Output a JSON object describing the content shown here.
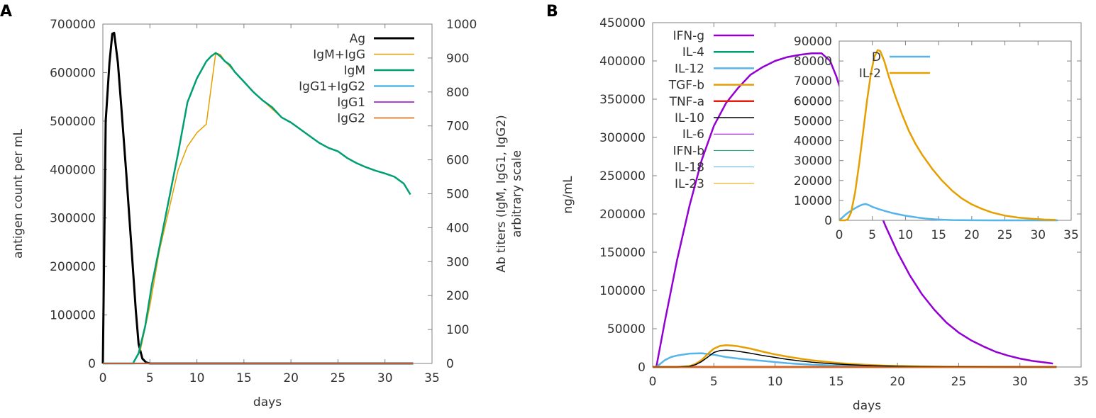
{
  "chart_data": [
    {
      "panel_label": "A",
      "type": "line",
      "xlabel": "days",
      "ylabel": "antigen count per mL",
      "y2label": [
        "Ab titers (IgM, IgG1, IgG2)",
        "arbitrary scale"
      ],
      "xlim": [
        0,
        35
      ],
      "ylim": [
        0,
        700000
      ],
      "y2lim": [
        0,
        1000
      ],
      "xticks": [
        0,
        5,
        10,
        15,
        20,
        25,
        30,
        35
      ],
      "yticks": [
        0,
        100000,
        200000,
        300000,
        400000,
        500000,
        600000,
        700000
      ],
      "y2ticks": [
        0,
        100,
        200,
        300,
        400,
        500,
        600,
        700,
        800,
        900,
        1000
      ],
      "legend_position": "top-right",
      "series": [
        {
          "name": "Ag",
          "color": "#000000",
          "width": 3,
          "axis": "y",
          "x": [
            0,
            0.3,
            0.7,
            1.0,
            1.2,
            1.6,
            2.0,
            2.5,
            3.0,
            3.5,
            3.8,
            4.2,
            4.6,
            5,
            33
          ],
          "y": [
            0,
            500000,
            620000,
            680000,
            682000,
            620000,
            520000,
            390000,
            250000,
            110000,
            40000,
            10000,
            2000,
            0,
            0
          ]
        },
        {
          "name": "IgM+IgG",
          "color": "#e69f00",
          "width": 1.5,
          "axis": "y2",
          "x": [
            0,
            3.2,
            4,
            5,
            6,
            7,
            8,
            9,
            10,
            11,
            12,
            12.5,
            13,
            14,
            15,
            16,
            17,
            18,
            19,
            20,
            21,
            22,
            23,
            24,
            25,
            26,
            27,
            28,
            29,
            30,
            31,
            32,
            32.7
          ],
          "y": [
            0,
            0,
            40,
            170,
            330,
            450,
            570,
            640,
            680,
            705,
            915,
            910,
            890,
            860,
            830,
            800,
            775,
            750,
            725,
            710,
            690,
            670,
            650,
            635,
            625,
            605,
            590,
            578,
            568,
            560,
            550,
            530,
            498
          ]
        },
        {
          "name": "IgM",
          "color": "#009e73",
          "width": 2.5,
          "axis": "y2",
          "x": [
            0,
            3.2,
            3.8,
            4.5,
            5.2,
            6,
            7,
            8,
            9,
            10,
            11,
            11.5,
            12,
            12.5,
            13,
            13.5,
            14,
            15,
            16,
            17,
            18,
            19,
            20,
            21,
            22,
            23,
            24,
            25,
            26,
            27,
            28,
            29,
            30,
            31,
            32,
            32.7
          ],
          "y": [
            0,
            0,
            30,
            110,
            230,
            340,
            480,
            620,
            770,
            840,
            890,
            905,
            915,
            905,
            890,
            880,
            860,
            830,
            800,
            775,
            755,
            725,
            710,
            690,
            670,
            650,
            635,
            625,
            605,
            590,
            578,
            568,
            560,
            550,
            530,
            498
          ]
        },
        {
          "name": "IgG1+IgG2",
          "color": "#56b4e9",
          "width": 2.5,
          "axis": "y2",
          "x": [
            0,
            33
          ],
          "y": [
            0,
            0
          ]
        },
        {
          "name": "IgG1",
          "color": "#9400d3",
          "width": 1.5,
          "axis": "y2",
          "x": [
            0,
            33
          ],
          "y": [
            0,
            0
          ]
        },
        {
          "name": "IgG2",
          "color": "#d55e00",
          "width": 1.5,
          "axis": "y2",
          "x": [
            0,
            33
          ],
          "y": [
            0,
            0
          ]
        }
      ]
    },
    {
      "panel_label": "B",
      "type": "line",
      "xlabel": "days",
      "ylabel": "ng/mL",
      "xlim": [
        0,
        35
      ],
      "ylim": [
        0,
        450000
      ],
      "xticks": [
        0,
        5,
        10,
        15,
        20,
        25,
        30,
        35
      ],
      "yticks": [
        0,
        50000,
        100000,
        150000,
        200000,
        250000,
        300000,
        350000,
        400000,
        450000
      ],
      "legend_position": "top-left",
      "series": [
        {
          "name": "IFN-g",
          "color": "#9400d3",
          "width": 2.5,
          "x": [
            0,
            0.3,
            1,
            2,
            3,
            4,
            5,
            6,
            7,
            8,
            9,
            10,
            11,
            12,
            13,
            13.8,
            14.5,
            15,
            16,
            17,
            18,
            19,
            20,
            21,
            22,
            23,
            24,
            25,
            26,
            27,
            28,
            29,
            30,
            31,
            32,
            32.7
          ],
          "y": [
            0,
            0,
            60000,
            140000,
            210000,
            270000,
            315000,
            345000,
            365000,
            382000,
            392000,
            400000,
            405000,
            408000,
            410000,
            410000,
            400000,
            380000,
            330000,
            275000,
            225000,
            185000,
            150000,
            120000,
            95000,
            75000,
            58000,
            45000,
            35000,
            27000,
            20000,
            15000,
            11000,
            8000,
            6000,
            4500
          ]
        },
        {
          "name": "IL-4",
          "color": "#009e73",
          "width": 2.5,
          "x": [
            0,
            33
          ],
          "y": [
            0,
            0
          ]
        },
        {
          "name": "IL-12",
          "color": "#56b4e9",
          "width": 2.5,
          "x": [
            0,
            0.3,
            1,
            1.5,
            2,
            3,
            4,
            5,
            6,
            7,
            8,
            9,
            10,
            11,
            12,
            13,
            14,
            15,
            16,
            17,
            18,
            19,
            20,
            22,
            25,
            33
          ],
          "y": [
            0,
            0,
            9000,
            13000,
            15000,
            17500,
            18000,
            16000,
            13000,
            11000,
            9500,
            8000,
            6500,
            5000,
            4000,
            3000,
            2400,
            1900,
            1500,
            1100,
            800,
            600,
            400,
            200,
            50,
            0
          ]
        },
        {
          "name": "TGF-b",
          "color": "#e69f00",
          "width": 2.5,
          "x": [
            0,
            2,
            3,
            3.5,
            4,
            4.5,
            5,
            5.5,
            6,
            6.5,
            7,
            8,
            9,
            10,
            11,
            12,
            13,
            14,
            15,
            16,
            17,
            18,
            19,
            20,
            21,
            22,
            24,
            26,
            28,
            30,
            33
          ],
          "y": [
            0,
            0,
            1000,
            4000,
            9000,
            17000,
            24000,
            27500,
            28500,
            28000,
            27000,
            24000,
            20000,
            16500,
            13500,
            11000,
            8800,
            7000,
            5500,
            4200,
            3200,
            2400,
            1800,
            1300,
            950,
            700,
            400,
            220,
            120,
            60,
            0
          ]
        },
        {
          "name": "TNF-a",
          "color": "#e51e10",
          "width": 2.5,
          "x": [
            0,
            33
          ],
          "y": [
            0,
            0
          ]
        },
        {
          "name": "IL-10",
          "color": "#000000",
          "width": 1.5,
          "x": [
            0,
            2,
            3,
            3.5,
            4,
            4.5,
            5,
            5.5,
            6,
            6.5,
            7,
            8,
            9,
            10,
            11,
            12,
            13,
            14,
            15,
            16,
            17,
            18,
            19,
            20,
            21,
            22,
            24,
            26,
            28,
            30,
            33
          ],
          "y": [
            0,
            0,
            800,
            3000,
            7000,
            13000,
            19000,
            21500,
            22000,
            21500,
            20500,
            18000,
            15000,
            12500,
            10000,
            8000,
            6300,
            5000,
            3900,
            3000,
            2300,
            1700,
            1300,
            950,
            700,
            500,
            280,
            150,
            80,
            40,
            0
          ]
        },
        {
          "name": "IL-6",
          "color": "#9400d3",
          "width": 1,
          "x": [
            0,
            33
          ],
          "y": [
            0,
            0
          ]
        },
        {
          "name": "IFN-b",
          "color": "#009e73",
          "width": 1,
          "x": [
            0,
            33
          ],
          "y": [
            0,
            0
          ]
        },
        {
          "name": "IL-18",
          "color": "#56b4e9",
          "width": 1,
          "x": [
            0,
            33
          ],
          "y": [
            0,
            0
          ]
        },
        {
          "name": "IL-23",
          "color": "#e69f00",
          "width": 1,
          "x": [
            0,
            33
          ],
          "y": [
            0,
            0
          ]
        }
      ]
    },
    {
      "panel_label": "",
      "inset_of": "B",
      "type": "line",
      "xlabel": "",
      "ylabel": "",
      "xlim": [
        0,
        35
      ],
      "ylim": [
        0,
        90000
      ],
      "xticks": [
        0,
        5,
        10,
        15,
        20,
        25,
        30,
        35
      ],
      "yticks": [
        0,
        10000,
        20000,
        30000,
        40000,
        50000,
        60000,
        70000,
        80000,
        90000
      ],
      "legend_position": "top-left",
      "series": [
        {
          "name": "D",
          "color": "#56b4e9",
          "width": 2.5,
          "x": [
            0,
            0.5,
            1,
            1.5,
            2,
            2.5,
            3,
            3.5,
            4,
            4.5,
            5,
            6,
            7,
            8,
            9,
            10,
            11,
            12,
            13,
            14,
            15,
            17,
            20,
            25,
            33
          ],
          "y": [
            0,
            1500,
            3000,
            4200,
            5300,
            6300,
            7200,
            7900,
            8200,
            7600,
            6800,
            5600,
            4600,
            3700,
            3000,
            2300,
            1800,
            1300,
            900,
            600,
            400,
            150,
            50,
            0,
            0
          ]
        },
        {
          "name": "IL-2",
          "color": "#e69f00",
          "width": 2.5,
          "x": [
            0,
            0.9,
            1.3,
            1.8,
            2.4,
            3,
            3.6,
            4.2,
            4.8,
            5.3,
            5.8,
            6.2,
            6.8,
            7.5,
            8.5,
            9.5,
            10.5,
            11.5,
            12.5,
            14,
            15.5,
            17,
            18.5,
            20,
            21.5,
            23,
            25,
            27,
            29,
            31,
            32.7
          ],
          "y": [
            0,
            0,
            500,
            4000,
            14000,
            28000,
            44000,
            60000,
            74000,
            82000,
            85500,
            85000,
            80000,
            72000,
            62000,
            53000,
            45000,
            38500,
            33000,
            26000,
            20000,
            15000,
            11000,
            8000,
            5800,
            4000,
            2400,
            1400,
            800,
            400,
            200
          ]
        }
      ]
    }
  ]
}
